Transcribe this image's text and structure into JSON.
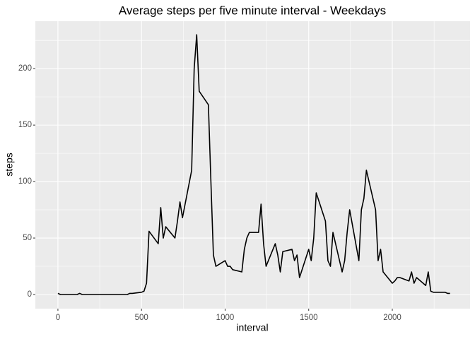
{
  "chart_data": {
    "type": "line",
    "title": "Average steps per five minute interval - Weekdays",
    "x_label": "interval",
    "y_label": "steps",
    "x": [
      0,
      15,
      30,
      45,
      100,
      115,
      130,
      145,
      200,
      215,
      230,
      245,
      300,
      315,
      330,
      345,
      400,
      415,
      430,
      445,
      500,
      515,
      530,
      545,
      600,
      615,
      630,
      645,
      700,
      715,
      730,
      745,
      800,
      815,
      830,
      845,
      900,
      915,
      930,
      945,
      1000,
      1015,
      1030,
      1045,
      1100,
      1115,
      1130,
      1145,
      1200,
      1215,
      1230,
      1245,
      1300,
      1315,
      1330,
      1345,
      1400,
      1415,
      1430,
      1445,
      1500,
      1515,
      1530,
      1545,
      1600,
      1615,
      1630,
      1645,
      1700,
      1715,
      1730,
      1745,
      1800,
      1815,
      1830,
      1845,
      1900,
      1915,
      1930,
      1945,
      2000,
      2015,
      2030,
      2045,
      2100,
      2115,
      2130,
      2145,
      2200,
      2215,
      2230,
      2245,
      2300,
      2315,
      2330,
      2345
    ],
    "values": [
      1,
      0,
      0,
      0,
      0,
      0,
      1,
      0,
      0,
      0,
      0,
      0,
      0,
      0,
      0,
      0,
      0,
      0,
      1,
      1,
      2,
      3,
      10,
      56,
      45,
      77,
      50,
      60,
      50,
      65,
      82,
      68,
      110,
      200,
      230,
      180,
      168,
      100,
      35,
      25,
      30,
      25,
      25,
      22,
      20,
      40,
      50,
      55,
      55,
      80,
      45,
      25,
      45,
      35,
      20,
      38,
      40,
      30,
      35,
      15,
      40,
      30,
      50,
      90,
      65,
      30,
      25,
      55,
      20,
      30,
      55,
      75,
      30,
      75,
      85,
      110,
      75,
      30,
      40,
      20,
      10,
      12,
      15,
      15,
      12,
      20,
      10,
      15,
      8,
      20,
      3,
      2,
      2,
      2,
      1,
      1
    ],
    "color": "#000000",
    "xlim": [
      -135,
      2465
    ],
    "xticks": [
      0,
      500,
      1000,
      1500,
      2000
    ],
    "ylim": [
      -12.5,
      242
    ],
    "yticks": [
      0,
      50,
      100,
      150,
      200
    ],
    "grid": true
  }
}
